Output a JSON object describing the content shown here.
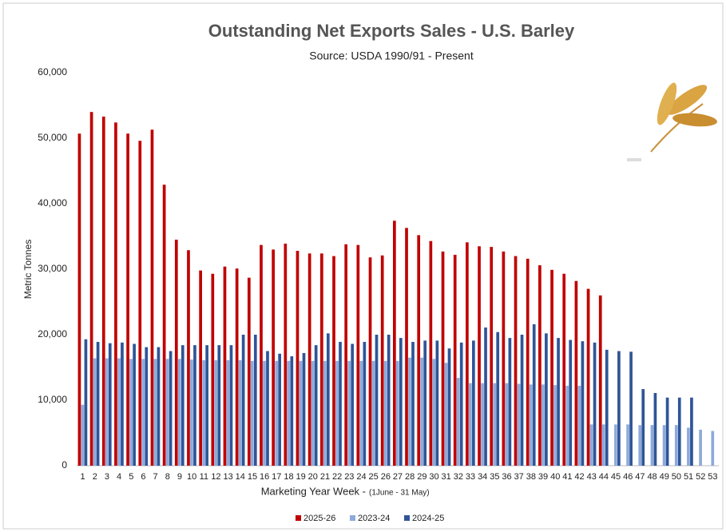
{
  "chart_data": {
    "type": "bar",
    "title": "Outstanding Net Exports Sales - U.S. Barley",
    "subtitle": "Source: USDA 1990/91 - Present",
    "y_label": "Metric Tonnes",
    "x_label": "Marketing Year Week -",
    "x_label_note": "(1June - 31 May)",
    "categories": [
      "1",
      "2",
      "3",
      "4",
      "5",
      "6",
      "7",
      "8",
      "9",
      "10",
      "11",
      "12",
      "13",
      "14",
      "15",
      "16",
      "17",
      "18",
      "19",
      "20",
      "21",
      "22",
      "23",
      "24",
      "25",
      "26",
      "27",
      "28",
      "29",
      "30",
      "31",
      "32",
      "33",
      "34",
      "35",
      "36",
      "37",
      "38",
      "39",
      "40",
      "41",
      "42",
      "43",
      "44",
      "45",
      "46",
      "47",
      "48",
      "49",
      "50",
      "51",
      "52",
      "53"
    ],
    "series": [
      {
        "name": "2025-26",
        "color": "#c00000",
        "values": [
          50700,
          54000,
          53300,
          52400,
          50700,
          49600,
          51300,
          42900,
          34500,
          32900,
          29800,
          29300,
          30400,
          30100,
          28700,
          33700,
          33000,
          33900,
          32800,
          32400,
          32400,
          32000,
          33800,
          33700,
          31800,
          32100,
          37400,
          36300,
          35200,
          34300,
          32700,
          32200,
          34100,
          33500,
          33400,
          32700,
          32000,
          31600,
          30600,
          29900,
          29300,
          28200,
          27000,
          26000,
          null,
          null,
          null,
          null,
          null,
          null,
          null,
          null,
          null
        ]
      },
      {
        "name": "2023-24",
        "color": "#8eaadb",
        "values": [
          9300,
          16400,
          16400,
          16400,
          16300,
          16300,
          16300,
          16300,
          16300,
          16200,
          16100,
          16100,
          16100,
          16100,
          16000,
          16000,
          16000,
          16000,
          16000,
          16000,
          16000,
          16000,
          16000,
          16000,
          16000,
          16000,
          16000,
          16500,
          16500,
          16300,
          15700,
          13400,
          12600,
          12600,
          12600,
          12600,
          12500,
          12400,
          12400,
          12300,
          12200,
          12200,
          6300,
          6300,
          6300,
          6300,
          6200,
          6200,
          6200,
          6200,
          5800,
          5500,
          5300
        ]
      },
      {
        "name": "2024-25",
        "color": "#2f5597",
        "values": [
          19300,
          18900,
          18700,
          18800,
          18600,
          18100,
          18100,
          17500,
          18400,
          18400,
          18400,
          18400,
          18400,
          20000,
          20000,
          17500,
          17100,
          16700,
          17200,
          18400,
          20200,
          18900,
          18600,
          18900,
          20000,
          20000,
          19500,
          18900,
          19100,
          19100,
          17900,
          18800,
          19100,
          21100,
          20400,
          19500,
          20000,
          21600,
          20200,
          19500,
          19200,
          19000,
          18800,
          17700,
          17500,
          17400,
          11700,
          11100,
          10400,
          10400,
          10400,
          null,
          null
        ]
      }
    ],
    "ylim": [
      0,
      60000
    ],
    "yticks": [
      0,
      {
        "value": 10000,
        "label": "10,000"
      },
      {
        "value": 20000,
        "label": "20,000"
      },
      {
        "value": 30000,
        "label": "30,000"
      },
      {
        "value": 40000,
        "label": "40,000"
      },
      {
        "value": 50000,
        "label": "50,000"
      },
      {
        "value": 60000,
        "label": "60,000"
      }
    ],
    "grid": false,
    "legend": "bottom"
  }
}
